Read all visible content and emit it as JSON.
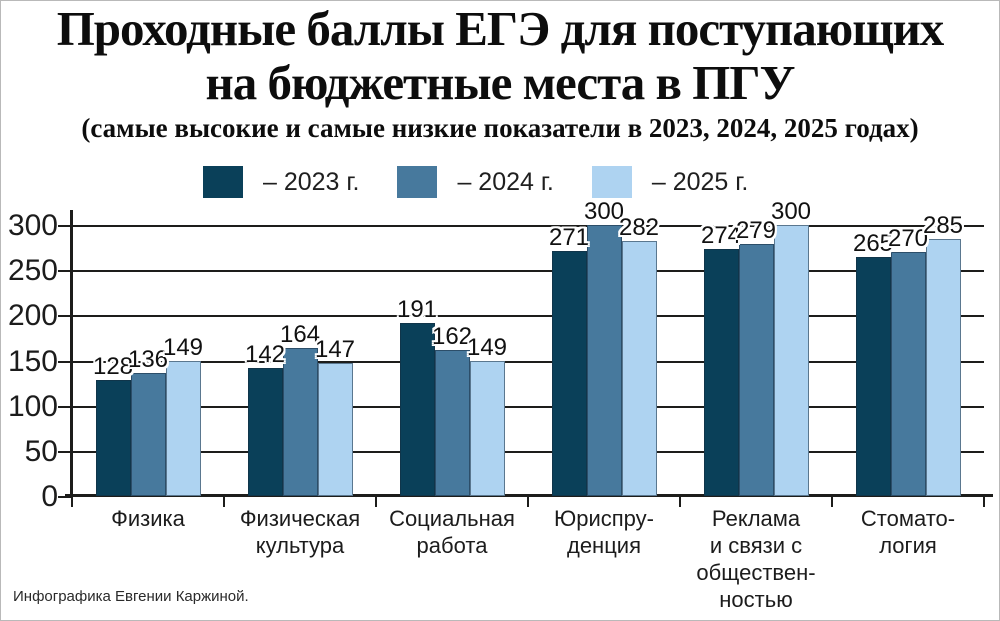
{
  "page": {
    "footer": "Инфографика  Евгении Каржиной."
  },
  "header": {
    "title_line1": "Проходные баллы ЕГЭ для поступающих",
    "title_line2": "на бюджетные места в ПГУ",
    "subtitle": "(самые высокие и самые низкие показатели в 2023, 2024, 2025 годах)"
  },
  "chart_data": {
    "type": "bar",
    "title": "Проходные баллы ЕГЭ для поступающих на бюджетные места в ПГУ",
    "subtitle": "(самые высокие и самые низкие показатели в 2023, 2024, 2025 годах)",
    "categories": [
      "Физика",
      "Физическая культура",
      "Социальная работа",
      "Юриспруденция",
      "Реклама и связи с общественностью",
      "Стоматология"
    ],
    "category_label_lines": [
      [
        "Физика"
      ],
      [
        "Физическая",
        "культура"
      ],
      [
        "Социальная",
        "работа"
      ],
      [
        "Юриспру-",
        "денция"
      ],
      [
        "Реклама",
        "и связи с",
        "обществен-",
        "ностью"
      ],
      [
        "Стомато-",
        "логия"
      ]
    ],
    "series": [
      {
        "name": "– 2023 г.",
        "color": "#0a4059",
        "values": [
          128,
          142,
          191,
          271,
          274,
          265
        ]
      },
      {
        "name": "– 2024 г.",
        "color": "#47799d",
        "values": [
          136,
          164,
          162,
          300,
          279,
          270
        ]
      },
      {
        "name": "– 2025 г.",
        "color": "#aed3f1",
        "values": [
          149,
          147,
          149,
          282,
          300,
          285
        ]
      }
    ],
    "ylabel": "",
    "xlabel": "",
    "ylim": [
      0,
      300
    ],
    "yticks": [
      0,
      50,
      100,
      150,
      200,
      250,
      300
    ],
    "grid": true,
    "legend_position": "top",
    "value_labels": true
  }
}
